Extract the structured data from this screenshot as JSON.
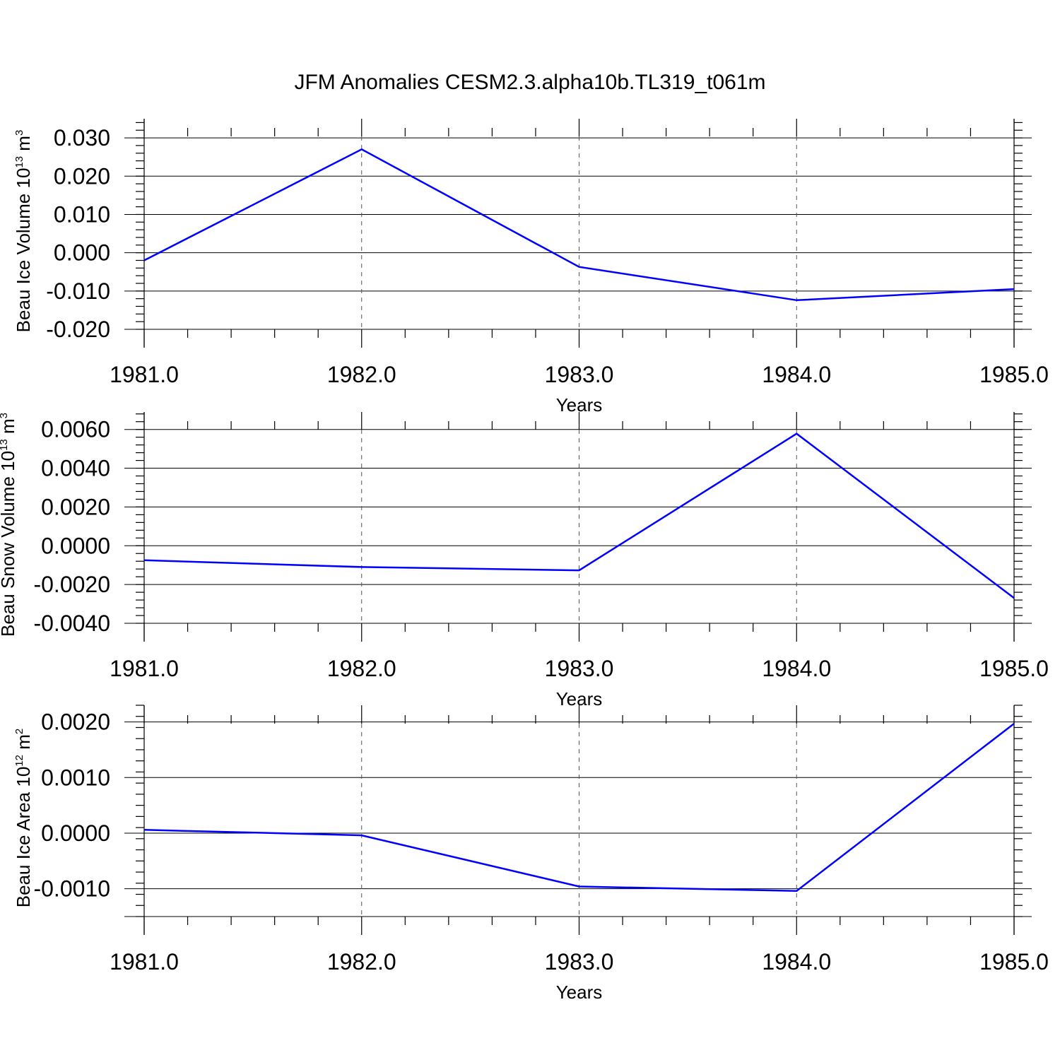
{
  "title": "JFM Anomalies CESM2.3.alpha10b.TL319_t061m",
  "colors": {
    "series": "#0000ff",
    "axis": "#000000"
  },
  "chart_data": [
    {
      "type": "line",
      "ylabel": "Beau Ice Volume 10",
      "ylabel_exp": "13",
      "ylabel_unit": "m",
      "ylabel_unit_exp": "3",
      "xlabel": "Years",
      "xlim": [
        1981,
        1985
      ],
      "ylim": [
        -0.02,
        0.035
      ],
      "x_ticks": [
        1981,
        1982,
        1983,
        1984,
        1985
      ],
      "x_tick_labels": [
        "1981.0",
        "1982.0",
        "1983.0",
        "1984.0",
        "1985.0"
      ],
      "y_ticks": [
        -0.02,
        -0.01,
        0.0,
        0.01,
        0.02,
        0.03
      ],
      "y_tick_labels": [
        "-0.020",
        "-0.010",
        "0.000",
        "0.010",
        "0.020",
        "0.030"
      ],
      "x": [
        1981,
        1982,
        1983,
        1984,
        1985
      ],
      "series": [
        {
          "values": [
            -0.002,
            0.027,
            -0.0037,
            -0.0124,
            -0.0095
          ]
        }
      ],
      "grid": "dashed vertical at major x ticks"
    },
    {
      "type": "line",
      "ylabel": "Beau Snow Volume 10",
      "ylabel_exp": "13",
      "ylabel_unit": "m",
      "ylabel_unit_exp": "3",
      "xlabel": "Years",
      "xlim": [
        1981,
        1985
      ],
      "ylim": [
        -0.004,
        0.0069
      ],
      "x_ticks": [
        1981,
        1982,
        1983,
        1984,
        1985
      ],
      "x_tick_labels": [
        "1981.0",
        "1982.0",
        "1983.0",
        "1984.0",
        "1985.0"
      ],
      "y_ticks": [
        -0.004,
        -0.002,
        0.0,
        0.002,
        0.004,
        0.006
      ],
      "y_tick_labels": [
        "-0.0040",
        "-0.0020",
        "0.0000",
        "0.0020",
        "0.0040",
        "0.0060"
      ],
      "x": [
        1981,
        1982,
        1983,
        1984,
        1985
      ],
      "series": [
        {
          "values": [
            -0.00075,
            -0.0011,
            -0.00127,
            0.00578,
            -0.0027
          ]
        }
      ],
      "grid": "dashed vertical at major x ticks"
    },
    {
      "type": "line",
      "ylabel": "Beau Ice Area 10",
      "ylabel_exp": "12",
      "ylabel_unit": "m",
      "ylabel_unit_exp": "2",
      "xlabel": "Years",
      "xlim": [
        1981,
        1985
      ],
      "ylim": [
        -0.0015,
        0.0023
      ],
      "x_ticks": [
        1981,
        1982,
        1983,
        1984,
        1985
      ],
      "x_tick_labels": [
        "1981.0",
        "1982.0",
        "1983.0",
        "1984.0",
        "1985.0"
      ],
      "y_ticks": [
        -0.001,
        0.0,
        0.001,
        0.002
      ],
      "y_tick_labels": [
        "-0.0010",
        "0.0000",
        "0.0010",
        "0.0020"
      ],
      "x": [
        1981,
        1982,
        1983,
        1984,
        1985
      ],
      "series": [
        {
          "values": [
            6e-05,
            -4e-05,
            -0.00096,
            -0.00104,
            0.00197
          ]
        }
      ],
      "grid": "dashed vertical at major x ticks"
    }
  ]
}
